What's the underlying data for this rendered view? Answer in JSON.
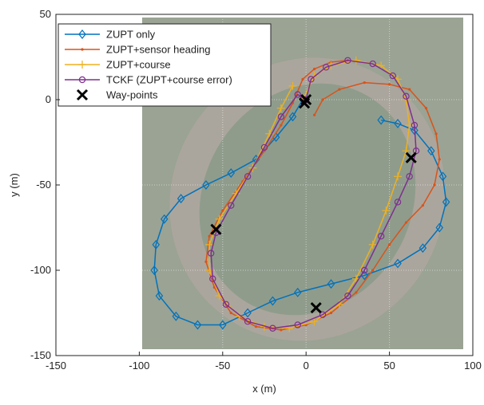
{
  "chart_data": {
    "type": "line",
    "xlabel": "x (m)",
    "ylabel": "y (m)",
    "xlim": [
      -150,
      100
    ],
    "ylim": [
      -150,
      50
    ],
    "xticks": [
      -150,
      -100,
      -50,
      0,
      50,
      100
    ],
    "yticks": [
      -150,
      -100,
      -50,
      0,
      50
    ],
    "grid": true,
    "legend": "upper left",
    "series": [
      {
        "name": "ZUPT only",
        "color": "#0072bd",
        "marker": "diamond",
        "x": [
          45,
          55,
          65,
          75,
          82,
          84,
          80,
          70,
          55,
          35,
          15,
          -5,
          -20,
          -35,
          -50,
          -65,
          -78,
          -88,
          -91,
          -90,
          -85,
          -75,
          -60,
          -45,
          -30,
          -18,
          -8,
          -2
        ],
        "values": [
          -12,
          -14,
          -18,
          -30,
          -45,
          -60,
          -75,
          -87,
          -96,
          -103,
          -108,
          -113,
          -118,
          -125,
          -132,
          -132,
          -127,
          -115,
          -100,
          -85,
          -70,
          -58,
          -50,
          -43,
          -35,
          -22,
          -10,
          0
        ]
      },
      {
        "name": "ZUPT+sensor heading",
        "color": "#d95319",
        "marker": "dot",
        "x": [
          5,
          10,
          20,
          35,
          50,
          62,
          72,
          78,
          80,
          77,
          70,
          60,
          50,
          40,
          30,
          15,
          0,
          -15,
          -30,
          -45,
          -55,
          -60,
          -58,
          -50,
          -38,
          -25,
          -15,
          -8,
          -2,
          5,
          15,
          25
        ],
        "values": [
          -9,
          0,
          6,
          10,
          9,
          6,
          -5,
          -20,
          -35,
          -50,
          -62,
          -72,
          -85,
          -100,
          -113,
          -125,
          -132,
          -135,
          -133,
          -125,
          -110,
          -95,
          -80,
          -65,
          -48,
          -30,
          -15,
          -2,
          12,
          18,
          22,
          23
        ]
      },
      {
        "name": "ZUPT+course",
        "color": "#edb120",
        "marker": "plus",
        "x": [
          -2,
          5,
          15,
          30,
          45,
          55,
          60,
          62,
          60,
          55,
          48,
          40,
          30,
          20,
          5,
          -10,
          -25,
          -40,
          -52,
          -58,
          -58,
          -52,
          -42,
          -32,
          -22,
          -15,
          -8
        ],
        "values": [
          0,
          14,
          20,
          23,
          20,
          12,
          0,
          -15,
          -30,
          -45,
          -65,
          -85,
          -105,
          -120,
          -130,
          -134,
          -133,
          -127,
          -115,
          -100,
          -85,
          -70,
          -55,
          -40,
          -20,
          -5,
          8
        ]
      },
      {
        "name": "TCKF (ZUPT+course error)",
        "color": "#7e2f8e",
        "marker": "circle",
        "x": [
          0,
          3,
          12,
          25,
          40,
          52,
          60,
          65,
          66,
          62,
          55,
          45,
          35,
          25,
          10,
          -5,
          -20,
          -35,
          -48,
          -56,
          -57,
          -54,
          -45,
          -35,
          -25,
          -15,
          -5,
          0
        ],
        "values": [
          0,
          12,
          19,
          23,
          21,
          14,
          2,
          -15,
          -30,
          -45,
          -60,
          -80,
          -100,
          -115,
          -126,
          -132,
          -134,
          -130,
          -120,
          -105,
          -90,
          -78,
          -62,
          -45,
          -28,
          -10,
          3,
          0
        ]
      },
      {
        "name": "Way-points",
        "color": "#000000",
        "marker": "x",
        "linestyle": "none",
        "x": [
          0,
          -1,
          63,
          -54,
          6
        ],
        "values": [
          0,
          -2,
          -34,
          -76,
          -122
        ]
      }
    ]
  }
}
